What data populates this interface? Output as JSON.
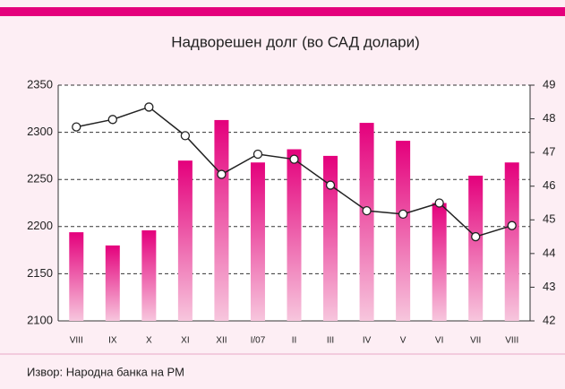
{
  "chart_data": {
    "type": "bar",
    "title": "Надворешен долг (во САД долари)",
    "categories": [
      "VIII",
      "IX",
      "X",
      "XI",
      "XII",
      "I/07",
      "II",
      "III",
      "IV",
      "V",
      "VI",
      "VII",
      "VIII"
    ],
    "series": [
      {
        "type": "bar",
        "color": "#e4007c",
        "values": [
          2194,
          2180,
          2196,
          2270,
          2313,
          2268,
          2282,
          2275,
          2310,
          2291,
          2225,
          2254,
          2268
        ]
      },
      {
        "type": "line",
        "axis": "y2",
        "color": "#222222",
        "values": [
          47.76,
          47.98,
          48.35,
          47.5,
          46.35,
          46.95,
          46.8,
          46.03,
          45.27,
          45.17,
          45.5,
          44.5,
          44.83
        ]
      }
    ],
    "ylim": [
      2100,
      2350
    ],
    "yticks": [
      2100,
      2150,
      2200,
      2250,
      2300,
      2350
    ],
    "y2lim": [
      42,
      49
    ],
    "y2ticks": [
      42,
      43,
      44,
      45,
      46,
      47,
      48,
      49
    ],
    "grid": true,
    "source": "Извор: Народна банка на РМ"
  }
}
